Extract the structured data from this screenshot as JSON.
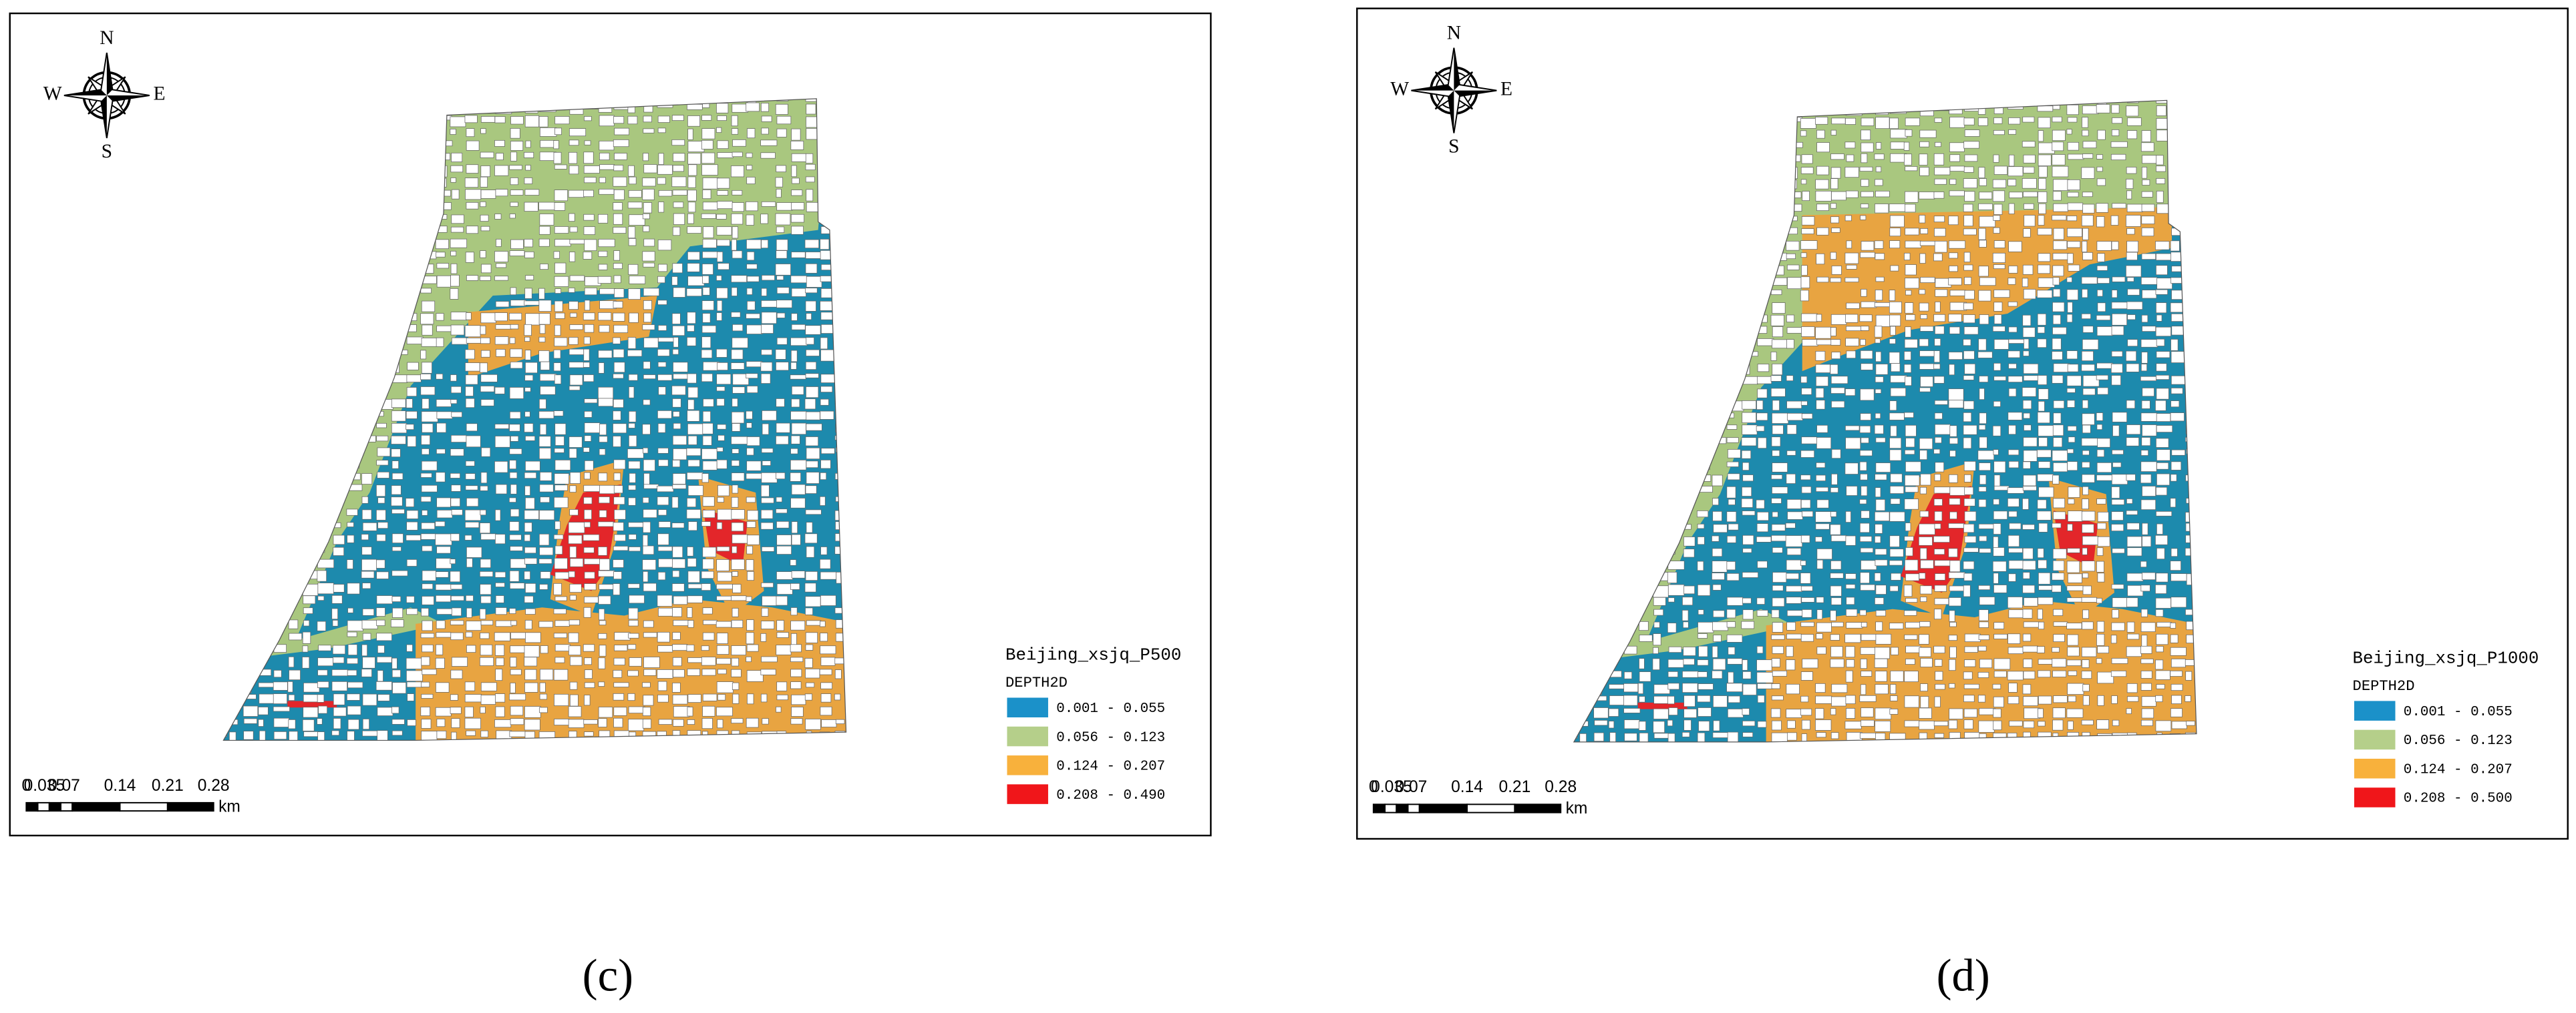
{
  "panels": [
    {
      "caption": "(c)",
      "legend": {
        "title": "Beijing_xsjq_P500",
        "field": "DEPTH2D",
        "classes": [
          {
            "label": "0.001 - 0.055",
            "color": "#1b91c9"
          },
          {
            "label": "0.056 - 0.123",
            "color": "#b5cf8a"
          },
          {
            "label": "0.124 - 0.207",
            "color": "#f8b13c"
          },
          {
            "label": "0.208 - 0.490",
            "color": "#f0161a"
          }
        ]
      },
      "compass": {
        "n": "N",
        "s": "S",
        "e": "E",
        "w": "W"
      },
      "scale_bar": {
        "labels": [
          "0",
          "0.035",
          "0.07",
          "0.14",
          "0.21",
          "0.28"
        ],
        "unit": "km"
      }
    },
    {
      "caption": "(d)",
      "legend": {
        "title": "Beijing_xsjq_P1000",
        "field": "DEPTH2D",
        "classes": [
          {
            "label": "0.001 - 0.055",
            "color": "#1b91c9"
          },
          {
            "label": "0.056 - 0.123",
            "color": "#b5cf8a"
          },
          {
            "label": "0.124 - 0.207",
            "color": "#f8b13c"
          },
          {
            "label": "0.208 - 0.500",
            "color": "#f0161a"
          }
        ]
      },
      "compass": {
        "n": "N",
        "s": "S",
        "e": "E",
        "w": "W"
      },
      "scale_bar": {
        "labels": [
          "0",
          "0.035",
          "0.07",
          "0.14",
          "0.21",
          "0.28"
        ],
        "unit": "km"
      }
    }
  ]
}
